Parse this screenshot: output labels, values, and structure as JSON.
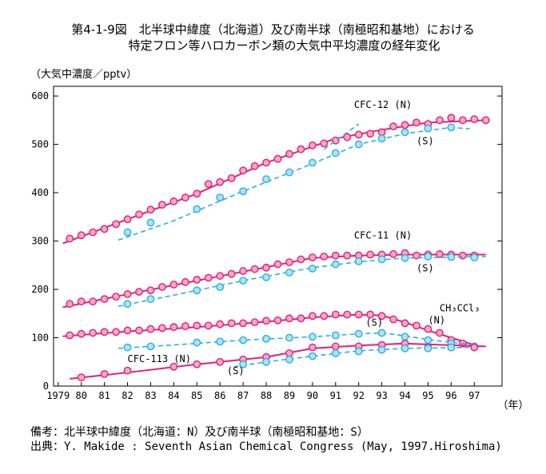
{
  "title_line1": "第4-1-9図　北半球中緯度（北海道）及び南半球（南極昭和基地）における",
  "title_line2": "特定フロン等ハロカーボン類の大気中平均濃度の経年変化",
  "footnote1": "備考：北半球中緯度（北海道：N）及び南半球（南極昭和基地：S）",
  "footnote2": "出典：Y. Makide : Seventh Asian Chemical Congress (May, 1997.Hiroshima)",
  "colors": {
    "north": "#e0207a",
    "south": "#2ab0e0",
    "north_fill": "#f5a8c8",
    "south_fill": "#aee2f5"
  },
  "chart_data": {
    "type": "line",
    "ylabel": "（大気中濃度／pptv）",
    "xlabel": "（年）",
    "x_ticks": [
      "1979",
      "80",
      "81",
      "82",
      "83",
      "84",
      "85",
      "86",
      "87",
      "88",
      "89",
      "90",
      "91",
      "92",
      "93",
      "94",
      "95",
      "96",
      "97"
    ],
    "x_tick_values": [
      1979,
      1980,
      1981,
      1982,
      1983,
      1984,
      1985,
      1986,
      1987,
      1988,
      1989,
      1990,
      1991,
      1992,
      1993,
      1994,
      1995,
      1996,
      1997
    ],
    "y_ticks": [
      0,
      100,
      200,
      300,
      400,
      500,
      600
    ],
    "xlim": [
      1978.8,
      1998.2
    ],
    "ylim": [
      0,
      620
    ],
    "series": [
      {
        "name": "CFC-12 (N)",
        "hemisphere": "N",
        "style": "solid",
        "points": [
          [
            1979.5,
            305
          ],
          [
            1980,
            312
          ],
          [
            1980.5,
            318
          ],
          [
            1981,
            325
          ],
          [
            1981.5,
            335
          ],
          [
            1982,
            345
          ],
          [
            1982.5,
            355
          ],
          [
            1983,
            365
          ],
          [
            1983.5,
            375
          ],
          [
            1984,
            382
          ],
          [
            1984.5,
            390
          ],
          [
            1985,
            398
          ],
          [
            1985.5,
            418
          ],
          [
            1986,
            422
          ],
          [
            1986.5,
            430
          ],
          [
            1987,
            446
          ],
          [
            1987.5,
            455
          ],
          [
            1988,
            462
          ],
          [
            1988.5,
            470
          ],
          [
            1989,
            480
          ],
          [
            1989.5,
            490
          ],
          [
            1990,
            498
          ],
          [
            1990.5,
            502
          ],
          [
            1991,
            508
          ],
          [
            1991.5,
            515
          ],
          [
            1992,
            520
          ],
          [
            1992.5,
            522
          ],
          [
            1993,
            525
          ],
          [
            1993.5,
            537
          ],
          [
            1994,
            540
          ],
          [
            1994.5,
            545
          ],
          [
            1995,
            542
          ],
          [
            1995.5,
            550
          ],
          [
            1996,
            555
          ],
          [
            1996.5,
            550
          ],
          [
            1997,
            552
          ],
          [
            1997.5,
            550
          ]
        ],
        "trend": [
          [
            1979.2,
            295
          ],
          [
            1982,
            345
          ],
          [
            1985,
            398
          ],
          [
            1988,
            462
          ],
          [
            1991,
            512
          ],
          [
            1993,
            530
          ],
          [
            1995,
            545
          ],
          [
            1997.5,
            550
          ]
        ]
      },
      {
        "name": "CFC-12 (S)",
        "hemisphere": "S",
        "style": "dashed",
        "points": [
          [
            1982,
            318
          ],
          [
            1983,
            338
          ],
          [
            1985,
            366
          ],
          [
            1986,
            390
          ],
          [
            1987,
            403
          ],
          [
            1988,
            428
          ],
          [
            1989,
            442
          ],
          [
            1990,
            462
          ],
          [
            1991,
            482
          ],
          [
            1992,
            500
          ],
          [
            1993,
            512
          ],
          [
            1994,
            525
          ],
          [
            1995,
            533
          ],
          [
            1996,
            535
          ]
        ],
        "trend": [
          [
            1981.6,
            302
          ],
          [
            1984,
            342
          ],
          [
            1987,
            403
          ],
          [
            1990,
            460
          ],
          [
            1992,
            500
          ],
          [
            1994,
            522
          ],
          [
            1996,
            535
          ],
          [
            1996.8,
            532
          ]
        ],
        "trend_extra": [
          [
            1990.5,
            490
          ],
          [
            1992,
            542
          ]
        ]
      },
      {
        "name": "CFC-11 (N)",
        "hemisphere": "N",
        "style": "solid",
        "points": [
          [
            1979.5,
            170
          ],
          [
            1980,
            175
          ],
          [
            1980.5,
            175
          ],
          [
            1981,
            180
          ],
          [
            1981.5,
            185
          ],
          [
            1982,
            190
          ],
          [
            1982.5,
            195
          ],
          [
            1983,
            198
          ],
          [
            1983.5,
            205
          ],
          [
            1984,
            210
          ],
          [
            1984.5,
            215
          ],
          [
            1985,
            220
          ],
          [
            1985.5,
            224
          ],
          [
            1986,
            228
          ],
          [
            1986.5,
            232
          ],
          [
            1987,
            238
          ],
          [
            1987.5,
            242
          ],
          [
            1988,
            245
          ],
          [
            1988.5,
            252
          ],
          [
            1989,
            256
          ],
          [
            1989.5,
            262
          ],
          [
            1990,
            266
          ],
          [
            1990.5,
            268
          ],
          [
            1991,
            270
          ],
          [
            1991.5,
            270
          ],
          [
            1992,
            270
          ],
          [
            1992.5,
            272
          ],
          [
            1993,
            272
          ],
          [
            1993.5,
            273
          ],
          [
            1994,
            275
          ],
          [
            1994.5,
            270
          ],
          [
            1995,
            272
          ],
          [
            1995.5,
            273
          ],
          [
            1996,
            272
          ],
          [
            1996.5,
            270
          ],
          [
            1997,
            270
          ]
        ],
        "trend": [
          [
            1979.2,
            163
          ],
          [
            1982,
            190
          ],
          [
            1985,
            218
          ],
          [
            1988,
            246
          ],
          [
            1990,
            265
          ],
          [
            1992,
            270
          ],
          [
            1994,
            272
          ],
          [
            1997.5,
            272
          ]
        ]
      },
      {
        "name": "CFC-11 (S)",
        "hemisphere": "S",
        "style": "dashed",
        "points": [
          [
            1982,
            170
          ],
          [
            1983,
            180
          ],
          [
            1985,
            198
          ],
          [
            1986,
            205
          ],
          [
            1987,
            218
          ],
          [
            1988,
            225
          ],
          [
            1989,
            235
          ],
          [
            1990,
            243
          ],
          [
            1991,
            252
          ],
          [
            1992,
            258
          ],
          [
            1993,
            262
          ],
          [
            1994,
            265
          ],
          [
            1995,
            268
          ],
          [
            1996,
            267
          ],
          [
            1997,
            266
          ]
        ],
        "trend": [
          [
            1981.6,
            165
          ],
          [
            1984,
            188
          ],
          [
            1987,
            218
          ],
          [
            1990,
            245
          ],
          [
            1992,
            257
          ],
          [
            1994,
            265
          ],
          [
            1997.5,
            268
          ]
        ]
      },
      {
        "name": "CH3CCl3 (N)",
        "hemisphere": "N",
        "style": "solid",
        "points": [
          [
            1979.5,
            105
          ],
          [
            1980,
            108
          ],
          [
            1980.5,
            110
          ],
          [
            1981,
            112
          ],
          [
            1981.5,
            112
          ],
          [
            1982,
            115
          ],
          [
            1982.5,
            115
          ],
          [
            1983,
            118
          ],
          [
            1983.5,
            120
          ],
          [
            1984,
            122
          ],
          [
            1984.5,
            124
          ],
          [
            1985,
            125
          ],
          [
            1985.5,
            125
          ],
          [
            1986,
            128
          ],
          [
            1986.5,
            130
          ],
          [
            1987,
            130
          ],
          [
            1987.5,
            132
          ],
          [
            1988,
            135
          ],
          [
            1988.5,
            136
          ],
          [
            1989,
            140
          ],
          [
            1989.5,
            140
          ],
          [
            1990,
            145
          ],
          [
            1990.5,
            145
          ],
          [
            1991,
            148
          ],
          [
            1991.5,
            148
          ],
          [
            1992,
            148
          ],
          [
            1992.5,
            148
          ],
          [
            1993,
            145
          ],
          [
            1993.5,
            138
          ],
          [
            1994,
            130
          ],
          [
            1994.5,
            125
          ],
          [
            1995,
            118
          ],
          [
            1995.5,
            110
          ],
          [
            1996,
            95
          ],
          [
            1996.5,
            88
          ],
          [
            1997,
            82
          ]
        ],
        "trend": [
          [
            1979.2,
            103
          ],
          [
            1982,
            113
          ],
          [
            1985,
            122
          ],
          [
            1988,
            133
          ],
          [
            1990,
            142
          ],
          [
            1992,
            148
          ],
          [
            1993,
            146
          ],
          [
            1994,
            132
          ],
          [
            1995,
            115
          ],
          [
            1996,
            100
          ],
          [
            1997,
            85
          ]
        ]
      },
      {
        "name": "CH3CCl3 (S)",
        "hemisphere": "S",
        "style": "dashed",
        "points": [
          [
            1982,
            80
          ],
          [
            1983,
            82
          ],
          [
            1985,
            90
          ],
          [
            1986,
            92
          ],
          [
            1987,
            95
          ],
          [
            1988,
            98
          ],
          [
            1989,
            100
          ],
          [
            1990,
            102
          ],
          [
            1991,
            105
          ],
          [
            1992,
            108
          ],
          [
            1993,
            110
          ],
          [
            1994,
            102
          ],
          [
            1995,
            95
          ],
          [
            1996,
            88
          ],
          [
            1997,
            82
          ]
        ],
        "trend": [
          [
            1981.6,
            78
          ],
          [
            1984,
            85
          ],
          [
            1987,
            95
          ],
          [
            1990,
            102
          ],
          [
            1992,
            108
          ],
          [
            1993,
            110
          ],
          [
            1994,
            104
          ],
          [
            1995,
            96
          ],
          [
            1997,
            85
          ]
        ]
      },
      {
        "name": "CFC-113 (N)",
        "hemisphere": "N",
        "style": "solid",
        "points": [
          [
            1980,
            18
          ],
          [
            1981,
            25
          ],
          [
            1982,
            32
          ],
          [
            1984,
            40
          ],
          [
            1985,
            45
          ],
          [
            1986,
            50
          ],
          [
            1987,
            55
          ],
          [
            1988,
            60
          ],
          [
            1989,
            68
          ],
          [
            1990,
            80
          ],
          [
            1991,
            82
          ],
          [
            1992,
            82
          ],
          [
            1993,
            85
          ],
          [
            1994,
            88
          ],
          [
            1995,
            80
          ],
          [
            1996,
            80
          ],
          [
            1997,
            80
          ]
        ],
        "trend": [
          [
            1979.5,
            15
          ],
          [
            1982,
            28
          ],
          [
            1985,
            45
          ],
          [
            1988,
            60
          ],
          [
            1990,
            78
          ],
          [
            1992,
            84
          ],
          [
            1994,
            88
          ],
          [
            1997.5,
            82
          ]
        ]
      },
      {
        "name": "CFC-113 (S)",
        "hemisphere": "S",
        "style": "dashed",
        "points": [
          [
            1987,
            45
          ],
          [
            1988,
            50
          ],
          [
            1989,
            55
          ],
          [
            1990,
            62
          ],
          [
            1991,
            68
          ],
          [
            1992,
            72
          ],
          [
            1993,
            75
          ],
          [
            1994,
            78
          ],
          [
            1995,
            78
          ],
          [
            1996,
            80
          ]
        ],
        "trend": [
          [
            1986.6,
            40
          ],
          [
            1988,
            50
          ],
          [
            1990,
            62
          ],
          [
            1992,
            73
          ],
          [
            1994,
            78
          ],
          [
            1996.8,
            80
          ]
        ]
      }
    ],
    "labels": [
      {
        "text": "CFC-12 (N)",
        "x": 1991.8,
        "y": 575
      },
      {
        "text": "(S)",
        "x": 1994.5,
        "y": 500
      },
      {
        "text": "CFC-11 (N)",
        "x": 1991.8,
        "y": 305
      },
      {
        "text": "(S)",
        "x": 1994.5,
        "y": 237
      },
      {
        "text": "CH₃CCl₃",
        "x": 1995.5,
        "y": 155
      },
      {
        "text": "(N)",
        "x": 1995,
        "y": 130
      },
      {
        "text": "(S)",
        "x": 1992.3,
        "y": 125
      },
      {
        "text": "CFC-113 (N)",
        "x": 1982,
        "y": 50
      },
      {
        "text": "(S)",
        "x": 1986.3,
        "y": 25
      }
    ]
  }
}
